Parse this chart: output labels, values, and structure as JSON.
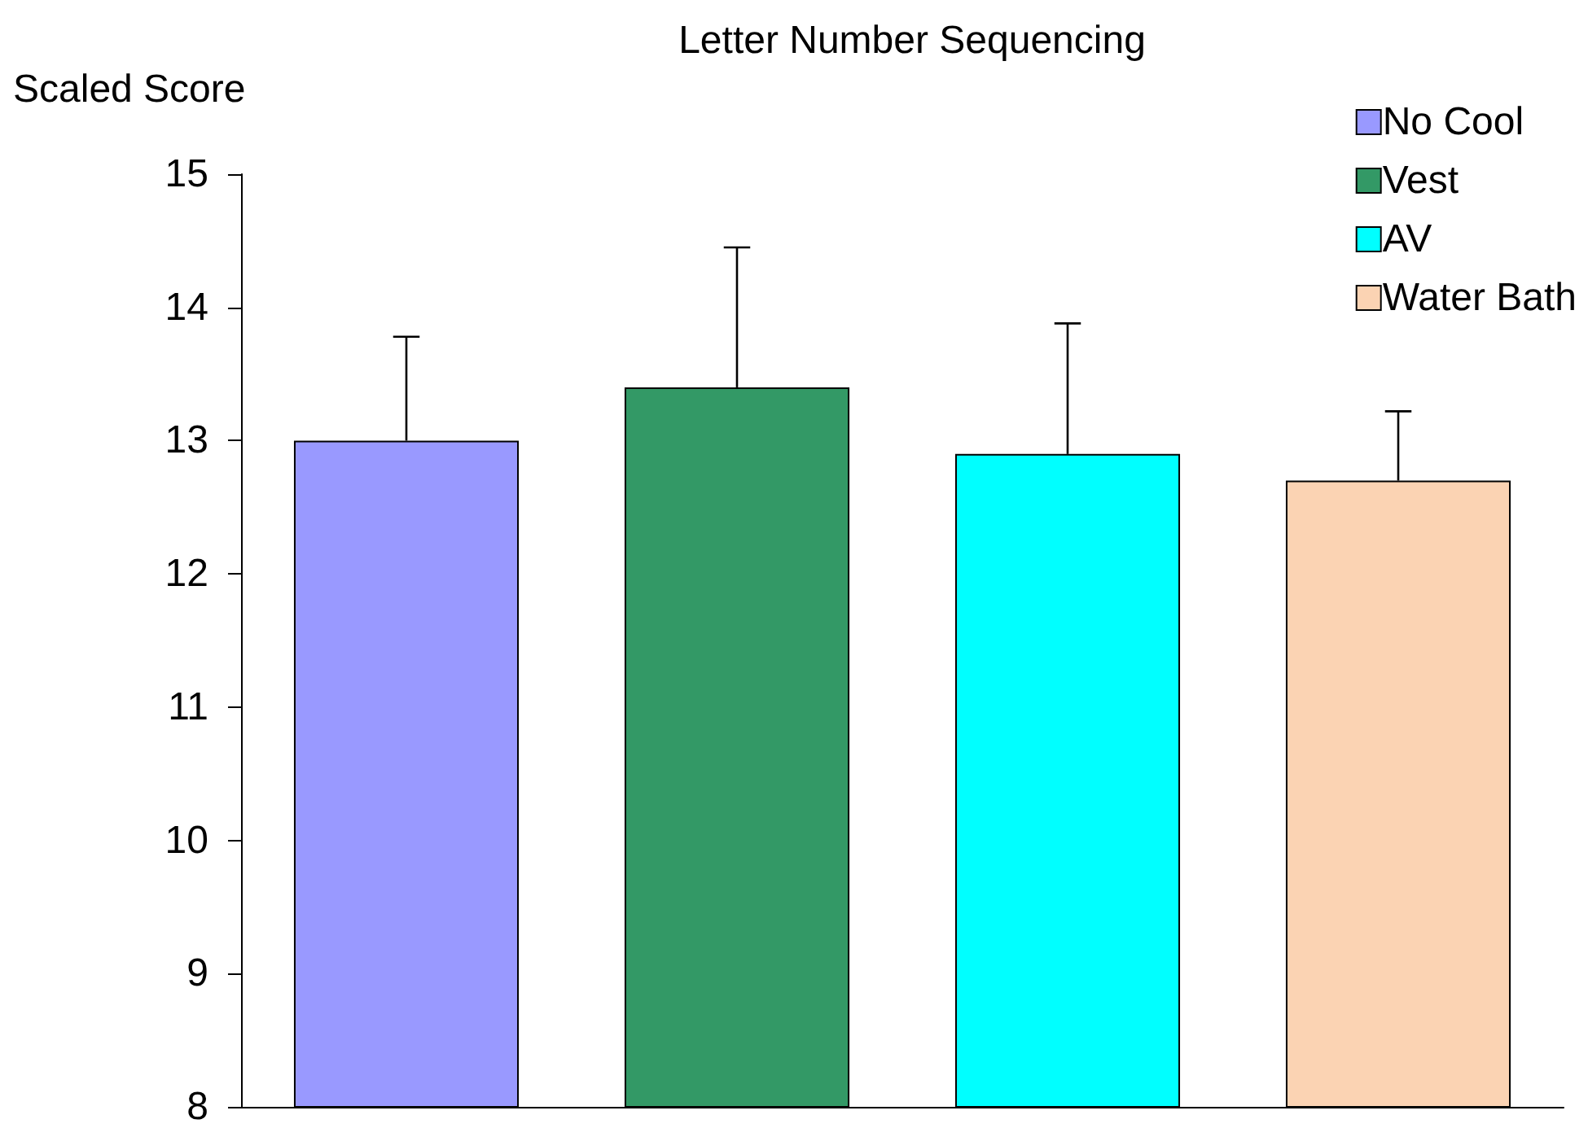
{
  "chart_data": {
    "type": "bar",
    "title": "Letter Number Sequencing",
    "ylabel": "Scaled Score",
    "categories": [
      null,
      null,
      null,
      null
    ],
    "series": [
      {
        "name": "No Cool",
        "color": "#9999ff",
        "values": [
          13.0,
          null,
          null,
          null
        ],
        "errors": [
          [
            13.0,
            13.78
          ],
          null,
          null,
          null
        ]
      },
      {
        "name": "Vest",
        "color": "#339966",
        "values": [
          null,
          13.4,
          null,
          null
        ],
        "errors": [
          null,
          [
            13.4,
            14.45
          ],
          null,
          null
        ]
      },
      {
        "name": "AV",
        "color": "#00ffff",
        "values": [
          null,
          null,
          12.9,
          null
        ],
        "errors": [
          null,
          null,
          [
            12.9,
            13.88
          ],
          null
        ]
      },
      {
        "name": "Water Bath",
        "color": "#fbd3b3",
        "values": [
          null,
          null,
          null,
          12.7
        ],
        "errors": [
          null,
          null,
          null,
          [
            12.7,
            13.22
          ]
        ]
      }
    ],
    "ylim": [
      8,
      15
    ],
    "yticks": [
      8,
      9,
      10,
      11,
      12,
      13,
      14,
      15
    ],
    "grid": false,
    "legend": "top right"
  }
}
